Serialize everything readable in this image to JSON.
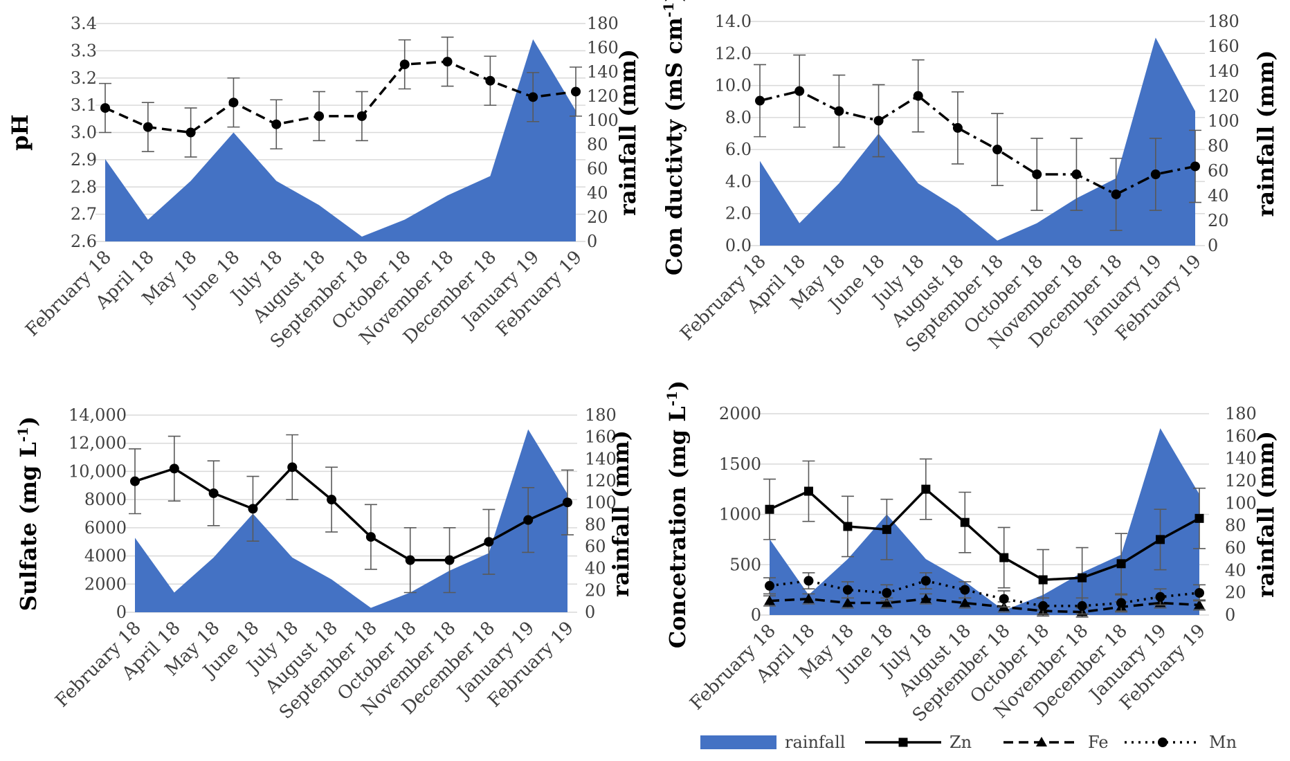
{
  "colors": {
    "rainfall": "#4472C4",
    "line": "#000000",
    "grid": "#D9D9D9",
    "axis_text": "#404040"
  },
  "months": [
    "February 18",
    "April 18",
    "May 18",
    "June 18",
    "July 18",
    "August 18",
    "September 18",
    "October 18",
    "November 18",
    "December 18",
    "January 19",
    "February 19"
  ],
  "legend": [
    {
      "key": "rainfall",
      "label": "rainfall"
    },
    {
      "key": "zn",
      "label": "Zn"
    },
    {
      "key": "fe",
      "label": "Fe"
    },
    {
      "key": "mn",
      "label": "Mn"
    }
  ],
  "chart_data": [
    {
      "id": "ph",
      "type": "line",
      "ylabel": "pH",
      "y2label": "rainfall (mm)",
      "yticks": [
        "2.6",
        "2.7",
        "2.8",
        "2.9",
        "3.0",
        "3.1",
        "3.2",
        "3.3",
        "3.4"
      ],
      "ylim": [
        2.6,
        3.4
      ],
      "y2ticks": [
        "0",
        "20",
        "40",
        "60",
        "80",
        "100",
        "120",
        "140",
        "160",
        "180"
      ],
      "y2lim": [
        0,
        180
      ],
      "rainfall": [
        68,
        18,
        50,
        90,
        50,
        30,
        4,
        18,
        38,
        54,
        167,
        108
      ],
      "series": [
        {
          "name": "pH",
          "style": "dash",
          "marker": "circle",
          "values": [
            3.09,
            3.02,
            3.0,
            3.11,
            3.03,
            3.06,
            3.06,
            3.25,
            3.26,
            3.19,
            3.13,
            3.15
          ],
          "errors": [
            0.09,
            0.09,
            0.09,
            0.09,
            0.09,
            0.09,
            0.09,
            0.09,
            0.09,
            0.09,
            0.09,
            0.09
          ]
        }
      ]
    },
    {
      "id": "conductivity",
      "type": "line",
      "ylabel": "Con ductivty (mS cm",
      "ylabel_sup": "-1",
      "ylabel_end": ")",
      "y2label": "rainfall (mm)",
      "yticks": [
        "0.0",
        "2.0",
        "4.0",
        "6.0",
        "8.0",
        "10.0",
        "12.0",
        "14.0"
      ],
      "ylim": [
        0,
        14
      ],
      "y2ticks": [
        "0",
        "20",
        "40",
        "60",
        "80",
        "100",
        "120",
        "140",
        "160",
        "180"
      ],
      "y2lim": [
        0,
        180
      ],
      "rainfall": [
        68,
        18,
        50,
        90,
        50,
        30,
        4,
        18,
        38,
        54,
        167,
        108
      ],
      "series": [
        {
          "name": "Conductivity",
          "style": "dashdot",
          "marker": "circle",
          "values": [
            9.05,
            9.65,
            8.4,
            7.8,
            9.35,
            7.35,
            6.0,
            4.45,
            4.45,
            3.2,
            4.45,
            4.95
          ],
          "errors": [
            2.25,
            2.25,
            2.25,
            2.25,
            2.25,
            2.25,
            2.25,
            2.25,
            2.25,
            2.25,
            2.25,
            2.25
          ]
        }
      ]
    },
    {
      "id": "sulfate",
      "type": "line",
      "ylabel": "Sulfate (mg L",
      "ylabel_sup": "-1",
      "ylabel_end": ")",
      "y2label": "rainfall (mm)",
      "yticks": [
        "0",
        "2000",
        "4000",
        "6000",
        "8000",
        "10,000",
        "12,000",
        "14,000"
      ],
      "ylim": [
        0,
        14000
      ],
      "y2ticks": [
        "0",
        "20",
        "40",
        "60",
        "80",
        "100",
        "120",
        "140",
        "160",
        "180"
      ],
      "y2lim": [
        0,
        180
      ],
      "rainfall": [
        68,
        18,
        50,
        90,
        50,
        30,
        4,
        18,
        38,
        54,
        167,
        108
      ],
      "series": [
        {
          "name": "Sulfate",
          "style": "solid",
          "marker": "circle",
          "values": [
            9300,
            10200,
            8450,
            7350,
            10300,
            8000,
            5350,
            3700,
            3700,
            5000,
            6550,
            7800
          ],
          "errors": [
            2300,
            2300,
            2300,
            2300,
            2300,
            2300,
            2300,
            2300,
            2300,
            2300,
            2300,
            2300
          ]
        }
      ]
    },
    {
      "id": "concentration",
      "type": "line",
      "ylabel": "Concetration (mg L",
      "ylabel_sup": "-1",
      "ylabel_end": ")",
      "y2label": "rainfall (mm)",
      "yticks": [
        "0",
        "500",
        "1000",
        "1500",
        "2000"
      ],
      "ylim": [
        0,
        2000
      ],
      "y2ticks": [
        "0",
        "20",
        "40",
        "60",
        "80",
        "100",
        "120",
        "140",
        "160",
        "180"
      ],
      "y2lim": [
        0,
        180
      ],
      "rainfall": [
        68,
        18,
        50,
        90,
        50,
        30,
        4,
        18,
        38,
        54,
        167,
        108
      ],
      "series": [
        {
          "name": "Zn",
          "style": "solid",
          "marker": "square",
          "values": [
            1050,
            1230,
            880,
            850,
            1250,
            920,
            570,
            350,
            370,
            510,
            750,
            960
          ],
          "errors": [
            300,
            300,
            300,
            300,
            300,
            300,
            300,
            300,
            300,
            300,
            300,
            300
          ]
        },
        {
          "name": "Fe",
          "style": "dash",
          "marker": "triangle",
          "values": [
            140,
            160,
            120,
            120,
            160,
            120,
            80,
            40,
            30,
            80,
            120,
            100
          ],
          "errors": [
            50,
            50,
            50,
            50,
            50,
            50,
            50,
            50,
            50,
            50,
            50,
            50
          ]
        },
        {
          "name": "Mn",
          "style": "dot",
          "marker": "circle",
          "values": [
            290,
            340,
            250,
            220,
            340,
            250,
            160,
            90,
            90,
            120,
            180,
            220
          ],
          "errors": [
            80,
            80,
            80,
            80,
            80,
            80,
            80,
            80,
            80,
            80,
            80,
            80
          ]
        }
      ]
    }
  ]
}
